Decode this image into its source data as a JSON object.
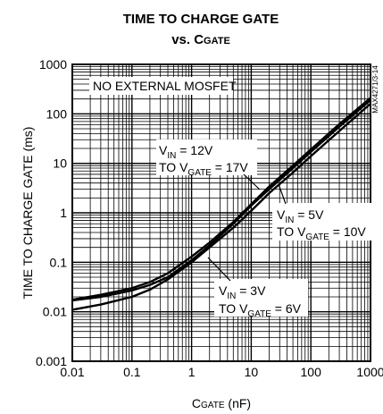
{
  "chart_data": {
    "type": "line",
    "title_line1": "TIME TO CHARGE GATE",
    "title_line2": {
      "prefix": "vs. C",
      "sub": "GATE"
    },
    "xlabel": {
      "main": "C",
      "sub": "GATE",
      "rest": " (nF)"
    },
    "ylabel": "TIME TO CHARGE GATE (ms)",
    "xscale": "log",
    "yscale": "log",
    "xlim": [
      0.01,
      1000
    ],
    "ylim": [
      0.001,
      1000
    ],
    "x_ticks": [
      "0.01",
      "0.1",
      "1",
      "10",
      "100",
      "1000"
    ],
    "y_ticks": [
      "0.001",
      "0.01",
      "0.1",
      "1",
      "10",
      "100",
      "1000"
    ],
    "grid": true,
    "series": [
      {
        "x": [
          0.01,
          0.03,
          0.1,
          0.2,
          0.4,
          1,
          2,
          5,
          10,
          20,
          50,
          100,
          300,
          1000
        ],
        "y": [
          0.017,
          0.02,
          0.027,
          0.035,
          0.05,
          0.11,
          0.22,
          0.6,
          1.4,
          3,
          8,
          17,
          55,
          190
        ]
      },
      {
        "x": [
          0.01,
          0.03,
          0.1,
          0.2,
          0.4,
          1,
          2,
          5,
          10,
          20,
          50,
          100,
          300,
          1000
        ],
        "y": [
          0.011,
          0.014,
          0.02,
          0.028,
          0.045,
          0.1,
          0.2,
          0.5,
          1.1,
          2.5,
          6.5,
          14,
          45,
          160
        ]
      },
      {
        "x": [
          0.01,
          0.03,
          0.1,
          0.2,
          0.4,
          1,
          2,
          5,
          10,
          20,
          50,
          100,
          300,
          1000
        ],
        "y": [
          0.0175,
          0.022,
          0.03,
          0.04,
          0.06,
          0.13,
          0.25,
          0.65,
          1.5,
          3.4,
          9,
          19,
          62,
          210
        ]
      }
    ],
    "annotations": [
      {
        "id": "no-ext",
        "text": "NO EXTERNAL MOSFET"
      },
      {
        "id": "a12",
        "line1": {
          "pre": "V",
          "sub": "IN",
          "post": " = 12V"
        },
        "line2": {
          "pre": "TO V",
          "sub": "GATE",
          "post": " = 17V"
        }
      },
      {
        "id": "a5",
        "line1": {
          "pre": "V",
          "sub": "IN",
          "post": " = 5V"
        },
        "line2": {
          "pre": "TO V",
          "sub": "GATE",
          "post": " = 10V"
        }
      },
      {
        "id": "a3",
        "line1": {
          "pre": "V",
          "sub": "IN",
          "post": " = 3V"
        },
        "line2": {
          "pre": "TO V",
          "sub": "GATE",
          "post": " = 6V"
        }
      }
    ],
    "figure_id": "MAX4271/3-14"
  }
}
